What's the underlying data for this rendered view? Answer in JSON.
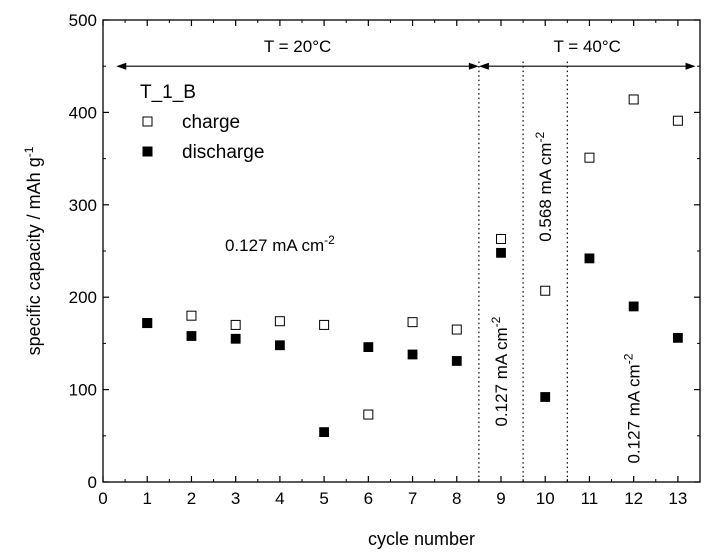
{
  "chart_data": {
    "type": "scatter",
    "xlabel": "cycle number",
    "ylabel": "specific capacity / mAh g",
    "ylabel_sup": "-1",
    "xlim": [
      0,
      13.5
    ],
    "ylim": [
      0,
      500
    ],
    "x_ticks": [
      "0",
      "1",
      "2",
      "3",
      "4",
      "5",
      "6",
      "7",
      "8",
      "9",
      "10",
      "11",
      "12",
      "13"
    ],
    "y_ticks": [
      "0",
      "100",
      "200",
      "300",
      "400",
      "500"
    ],
    "grid": false,
    "legend": {
      "title": "T_1_B",
      "placement": "top-left",
      "entries": [
        "charge",
        "discharge"
      ]
    },
    "series": [
      {
        "name": "charge",
        "marker": "open-square",
        "x": [
          1,
          2,
          3,
          4,
          5,
          6,
          7,
          8,
          9,
          10,
          11,
          12,
          13
        ],
        "y": [
          172,
          180,
          170,
          174,
          170,
          73,
          173,
          165,
          263,
          207,
          351,
          414,
          391
        ]
      },
      {
        "name": "discharge",
        "marker": "filled-square",
        "x": [
          1,
          2,
          3,
          4,
          5,
          6,
          7,
          8,
          9,
          10,
          11,
          12,
          13
        ],
        "y": [
          172,
          158,
          155,
          148,
          54,
          146,
          138,
          131,
          248,
          92,
          242,
          190,
          156
        ]
      }
    ],
    "dividers_x": [
      8.5,
      9.5,
      10.5
    ],
    "temperature_regions": [
      {
        "label": "T = 20°C",
        "x_start": 0.3,
        "x_end": 8.5,
        "y": 450
      },
      {
        "label": "T = 40°C",
        "x_start": 8.5,
        "x_end": 13.4,
        "y": 450
      }
    ],
    "annotations": [
      {
        "text": "0.127 mA cm",
        "sup": "-2",
        "x": 4.0,
        "y": 250,
        "rotate": 0
      },
      {
        "text": "0.127 mA cm",
        "sup": "-2",
        "x": 9.0,
        "y": 60,
        "rotate": -90
      },
      {
        "text": "0.568 mA cm",
        "sup": "-2",
        "x": 10.0,
        "y": 260,
        "rotate": -90
      },
      {
        "text": "0.127 mA cm",
        "sup": "-2",
        "x": 12.0,
        "y": 20,
        "rotate": -90
      }
    ]
  }
}
